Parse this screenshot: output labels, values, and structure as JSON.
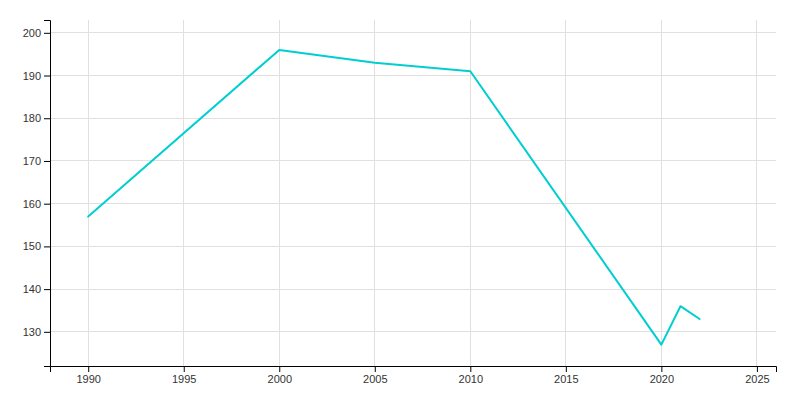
{
  "chart_data": {
    "type": "line",
    "x": [
      1990,
      2000,
      2005,
      2010,
      2020,
      2021,
      2022
    ],
    "values": [
      157,
      196,
      193,
      191,
      127,
      136,
      133
    ],
    "color": "#00CED1",
    "xlim": [
      1988,
      2026
    ],
    "ylim": [
      122,
      203
    ],
    "xticks": [
      1990,
      1995,
      2000,
      2005,
      2010,
      2015,
      2020,
      2025
    ],
    "yticks": [
      130,
      140,
      150,
      160,
      170,
      180,
      190,
      200
    ],
    "grid": true
  }
}
